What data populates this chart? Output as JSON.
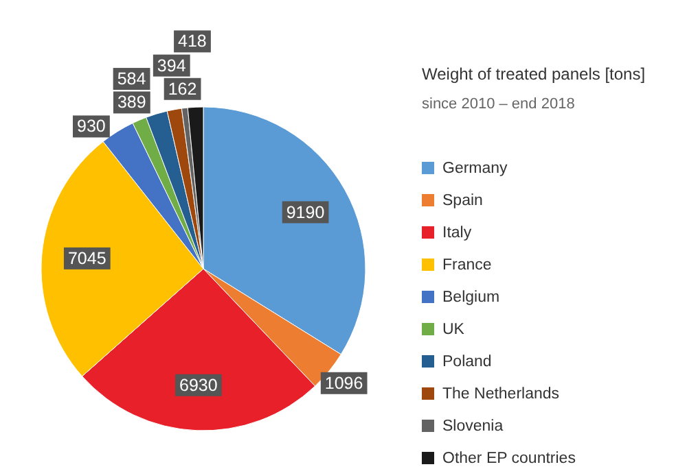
{
  "chart_data": {
    "type": "pie",
    "title": "Weight of treated panels [tons]",
    "subtitle": "since 2010 – end 2018",
    "categories": [
      "Germany",
      "Spain",
      "Italy",
      "France",
      "Belgium",
      "UK",
      "Poland",
      "The Netherlands",
      "Slovenia",
      "Other EP countries"
    ],
    "values": [
      9190,
      1096,
      6930,
      7045,
      930,
      389,
      584,
      394,
      162,
      418
    ],
    "colors": [
      "#5b9bd5",
      "#ed7d31",
      "#e8202a",
      "#ffc000",
      "#4472c4",
      "#70ad47",
      "#255e91",
      "#9e480e",
      "#636363",
      "#1a1a1a"
    ],
    "data_labels": true,
    "legend": "right"
  }
}
